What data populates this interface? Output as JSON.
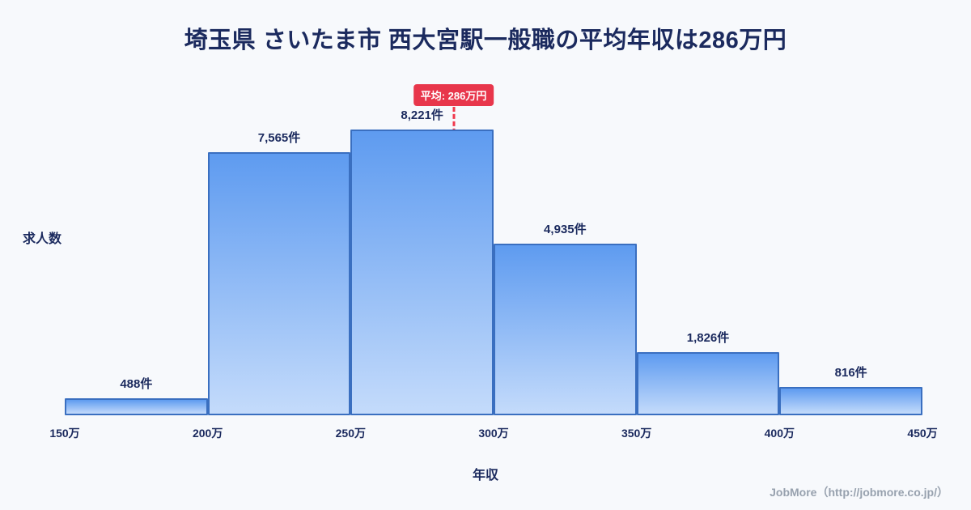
{
  "page": {
    "footer": "JobMore（http://jobmore.co.jp/）"
  },
  "chart_data": {
    "type": "bar",
    "title": "埼玉県 さいたま市 西大宮駅一般職の平均年収は286万円",
    "bin_edges": [
      150,
      200,
      250,
      300,
      350,
      400,
      450
    ],
    "bin_edge_labels": [
      "150万",
      "200万",
      "250万",
      "300万",
      "350万",
      "400万",
      "450万"
    ],
    "values": [
      488,
      7565,
      8221,
      4935,
      1826,
      816
    ],
    "value_labels": [
      "488件",
      "7,565件",
      "8,221件",
      "4,935件",
      "1,826件",
      "816件"
    ],
    "xlabel": "年収",
    "ylabel": "求人数",
    "ylim": [
      0,
      8800
    ],
    "grid": false,
    "legend": false,
    "average": {
      "value": 286,
      "label": "平均: 286万円"
    },
    "colors": {
      "background": "#F7F9FC",
      "title_text": "#1B2A5E",
      "axis_text": "#1B2A5E",
      "bar_top": "#5E9BF0",
      "bar_bottom": "#C4DBFB",
      "bar_border": "#3A6FC0",
      "average_line": "#F0394D",
      "badge_bg": "#E8364B",
      "badge_text": "#FFFFFF",
      "footer_text": "#97A1AE"
    }
  }
}
